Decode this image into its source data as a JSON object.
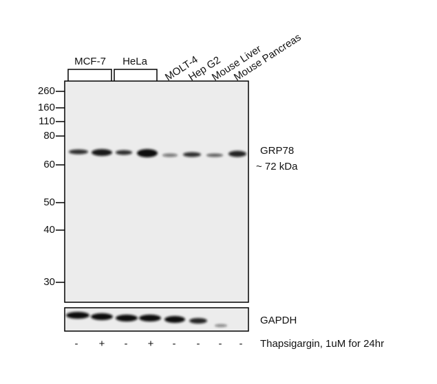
{
  "groups": [
    "MCF-7",
    "HeLa"
  ],
  "lanes": [
    "MOLT-4",
    "Hep G2",
    "Mouse Liver",
    "Mouse Pancreas"
  ],
  "markers": [
    "260",
    "160",
    "110",
    "80",
    "60",
    "50",
    "40",
    "30"
  ],
  "target": {
    "name": "GRP78",
    "size": "~ 72 kDa"
  },
  "loading_control": "GAPDH",
  "treatment": {
    "signs": [
      "-",
      "+",
      "-",
      "+",
      "-",
      "-",
      "-",
      "-"
    ],
    "label": "Thapsigargin, 1uM for 24hr"
  }
}
